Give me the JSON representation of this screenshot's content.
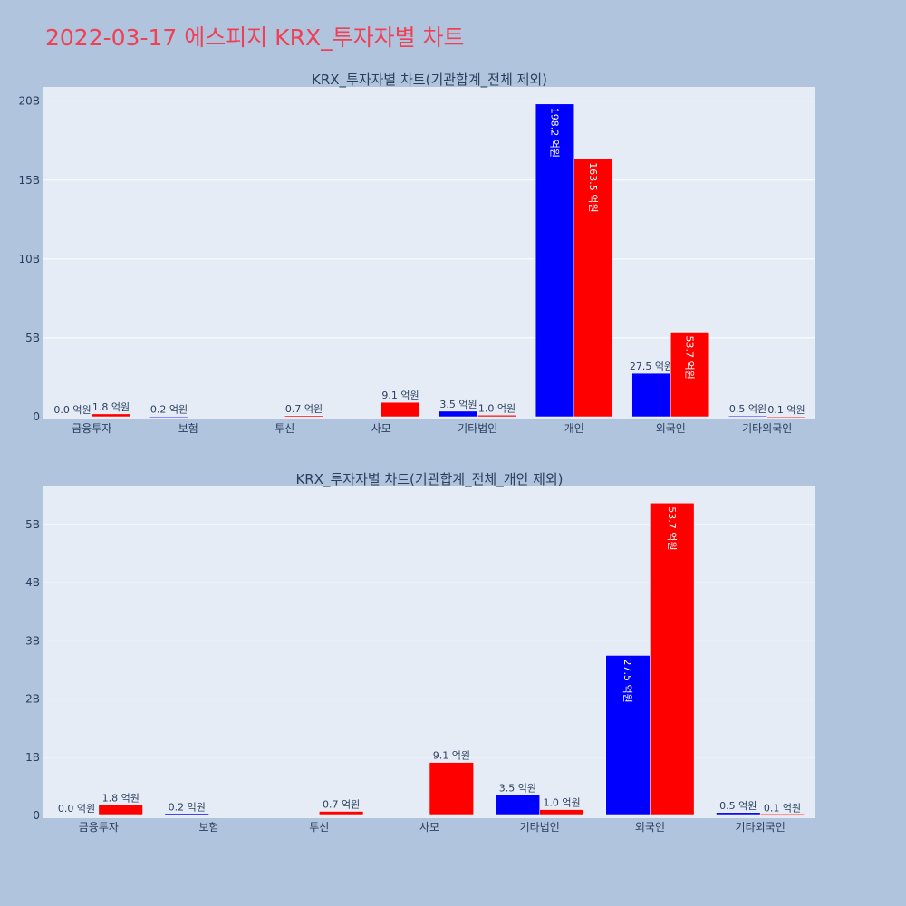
{
  "page_title": "2022-03-17 에스피지 KRX_투자자별 차트",
  "colors": {
    "buy": "#0000ff",
    "sell": "#ff0000",
    "plot_bg": "#e5ecf6",
    "page_bg": "#b0c4de",
    "title": "#ef4056"
  },
  "chart_data": [
    {
      "type": "bar",
      "title": "KRX_투자자별 차트(기관합계_전체 제외)",
      "categories": [
        "금융투자",
        "보험",
        "투신",
        "사모",
        "기타법인",
        "개인",
        "외국인",
        "기타외국인"
      ],
      "series": [
        {
          "color": "#0000ff",
          "values": [
            0.0,
            0.02,
            0,
            0,
            0.35,
            19.82,
            2.75,
            0.05
          ],
          "labels": [
            "0.0 억원",
            "0.2 억원",
            "",
            "",
            "3.5 억원",
            "198.2 억원",
            "27.5 억원",
            "0.5 억원"
          ]
        },
        {
          "color": "#ff0000",
          "values": [
            0.18,
            0,
            0.07,
            0.91,
            0.1,
            16.35,
            5.37,
            0.01
          ],
          "labels": [
            "1.8 억원",
            "",
            "0.7 억원",
            "9.1 억원",
            "1.0 억원",
            "163.5 억원",
            "53.7 억원",
            "0.1 억원"
          ]
        }
      ],
      "yticks": [
        0,
        5,
        10,
        15,
        20
      ],
      "ytick_labels": [
        "0",
        "5B",
        "10B",
        "15B",
        "20B"
      ],
      "ylim": [
        0,
        20.9
      ],
      "grid": true
    },
    {
      "type": "bar",
      "title": "KRX_투자자별 차트(기관합계_전체_개인 제외)",
      "categories": [
        "금융투자",
        "보험",
        "투신",
        "사모",
        "기타법인",
        "외국인",
        "기타외국인"
      ],
      "series": [
        {
          "color": "#0000ff",
          "values": [
            0.0,
            0.02,
            0,
            0,
            0.35,
            2.75,
            0.05
          ],
          "labels": [
            "0.0 억원",
            "0.2 억원",
            "",
            "",
            "3.5 억원",
            "27.5 억원",
            "0.5 억원"
          ]
        },
        {
          "color": "#ff0000",
          "values": [
            0.18,
            0,
            0.07,
            0.91,
            0.1,
            5.37,
            0.01
          ],
          "labels": [
            "1.8 억원",
            "",
            "0.7 억원",
            "9.1 억원",
            "1.0 억원",
            "53.7 억원",
            "0.1 억원"
          ]
        }
      ],
      "yticks": [
        0,
        1,
        2,
        3,
        4,
        5
      ],
      "ytick_labels": [
        "0",
        "1B",
        "2B",
        "3B",
        "4B",
        "5B"
      ],
      "ylim": [
        0,
        5.67
      ],
      "grid": true
    }
  ]
}
